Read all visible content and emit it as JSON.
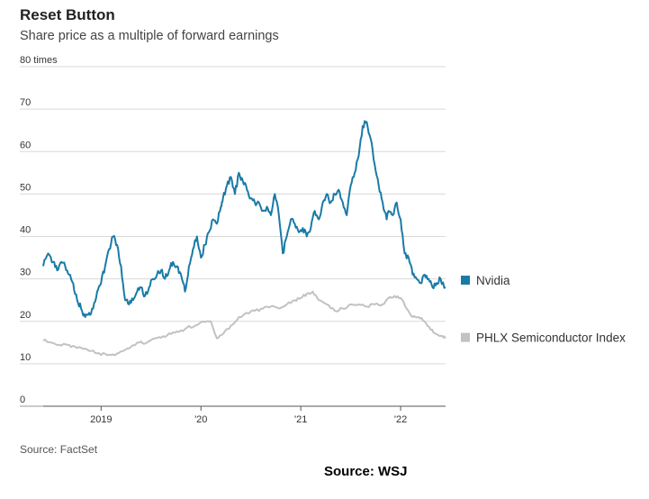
{
  "chart_data": {
    "type": "line",
    "title": "Reset Button",
    "subtitle": "Share price as a multiple of forward earnings",
    "ylabel": "times",
    "ylim": [
      0,
      80
    ],
    "yticks": [
      0,
      10,
      20,
      30,
      40,
      50,
      60,
      70,
      80
    ],
    "ytick_labels": [
      "0",
      "10",
      "20",
      "30",
      "40",
      "50",
      "60",
      "70",
      "80 times"
    ],
    "xlim": [
      2018.42,
      2022.45
    ],
    "xticks": [
      2019,
      2020,
      2021,
      2022
    ],
    "xtick_labels": [
      "2019",
      "'20",
      "'21",
      "'22"
    ],
    "grid": true,
    "legend_position": "right",
    "source": "Source: FactSet",
    "series": [
      {
        "name": "Nvidia",
        "color": "#1a7aa6",
        "x": [
          2018.42,
          2018.47,
          2018.52,
          2018.56,
          2018.6,
          2018.64,
          2018.68,
          2018.72,
          2018.76,
          2018.8,
          2018.84,
          2018.88,
          2018.92,
          2018.96,
          2019.0,
          2019.04,
          2019.08,
          2019.12,
          2019.16,
          2019.2,
          2019.24,
          2019.28,
          2019.32,
          2019.36,
          2019.4,
          2019.44,
          2019.48,
          2019.52,
          2019.56,
          2019.6,
          2019.64,
          2019.68,
          2019.72,
          2019.76,
          2019.8,
          2019.84,
          2019.88,
          2019.92,
          2019.96,
          2020.0,
          2020.04,
          2020.08,
          2020.12,
          2020.16,
          2020.2,
          2020.22,
          2020.26,
          2020.3,
          2020.34,
          2020.38,
          2020.42,
          2020.46,
          2020.5,
          2020.54,
          2020.58,
          2020.62,
          2020.66,
          2020.7,
          2020.74,
          2020.78,
          2020.82,
          2020.86,
          2020.9,
          2020.94,
          2020.98,
          2021.02,
          2021.06,
          2021.1,
          2021.14,
          2021.18,
          2021.22,
          2021.26,
          2021.3,
          2021.34,
          2021.38,
          2021.42,
          2021.46,
          2021.5,
          2021.54,
          2021.58,
          2021.62,
          2021.66,
          2021.7,
          2021.74,
          2021.78,
          2021.82,
          2021.86,
          2021.88,
          2021.92,
          2021.96,
          2022.0,
          2022.04,
          2022.08,
          2022.12,
          2022.16,
          2022.2,
          2022.24,
          2022.28,
          2022.32,
          2022.36,
          2022.4,
          2022.45
        ],
        "values": [
          33,
          36,
          34,
          32,
          34,
          33,
          31,
          29,
          25,
          23,
          21,
          22,
          23,
          27,
          29,
          33,
          37,
          40,
          38,
          33,
          25,
          24,
          25,
          27,
          28,
          26,
          28,
          30,
          31,
          32,
          30,
          32,
          34,
          33,
          31,
          27,
          33,
          37,
          40,
          35,
          38,
          41,
          44,
          43,
          47,
          49,
          52,
          54,
          50,
          55,
          53,
          51,
          49,
          48,
          48,
          46,
          47,
          45,
          50,
          45,
          36,
          40,
          44,
          43,
          41,
          42,
          40,
          42,
          46,
          44,
          48,
          50,
          48,
          50,
          51,
          48,
          45,
          52,
          55,
          59,
          66,
          67,
          63,
          57,
          52,
          48,
          44,
          46,
          45,
          48,
          44,
          36,
          35,
          31,
          30,
          29,
          31,
          30,
          28,
          29,
          30,
          28
        ]
      },
      {
        "name": "PHLX Semiconductor Index",
        "color": "#c2c2c2",
        "x": [
          2018.42,
          2018.5,
          2018.58,
          2018.66,
          2018.74,
          2018.82,
          2018.9,
          2018.98,
          2019.06,
          2019.14,
          2019.22,
          2019.3,
          2019.38,
          2019.46,
          2019.54,
          2019.62,
          2019.7,
          2019.78,
          2019.86,
          2019.94,
          2020.02,
          2020.1,
          2020.16,
          2020.22,
          2020.3,
          2020.38,
          2020.46,
          2020.54,
          2020.62,
          2020.7,
          2020.78,
          2020.86,
          2020.94,
          2021.0,
          2021.06,
          2021.12,
          2021.18,
          2021.26,
          2021.34,
          2021.42,
          2021.5,
          2021.58,
          2021.66,
          2021.74,
          2021.82,
          2021.88,
          2021.94,
          2022.0,
          2022.06,
          2022.12,
          2022.18,
          2022.24,
          2022.3,
          2022.36,
          2022.42,
          2022.45
        ],
        "values": [
          15.5,
          15,
          14.5,
          14.5,
          14,
          13.5,
          13,
          12.5,
          12,
          12,
          13,
          14,
          15,
          15,
          16,
          16.5,
          17,
          17.5,
          18.5,
          19,
          20,
          20,
          16,
          17,
          19,
          21,
          22,
          22.5,
          23,
          23.5,
          23,
          24,
          25,
          25.5,
          26.5,
          27,
          25,
          24,
          22.5,
          23,
          24,
          24,
          23.5,
          24,
          24,
          25.5,
          26,
          25.5,
          23,
          21,
          21,
          20,
          18,
          17,
          16.5,
          16
        ]
      }
    ]
  },
  "footer": {
    "source_label": "Source:  WSJ"
  }
}
